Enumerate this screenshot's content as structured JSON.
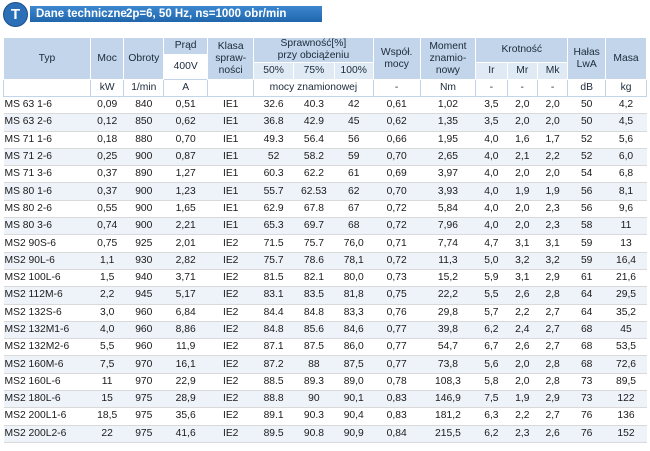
{
  "header": {
    "badge": "T",
    "title": "Dane techniczne",
    "subtitle": "2p=6, 50 Hz, ns=1000 obr/min"
  },
  "table": {
    "headers": {
      "typ": "Typ",
      "moc": "Moc",
      "obroty": "Obroty",
      "prad": "Prąd",
      "prad_sub": "400V",
      "klasa_l1": "Klasa",
      "klasa_l2": "spraw-",
      "klasa_l3": "ności",
      "sprawnosc_l1": "Sprawność[%]",
      "sprawnosc_l2": "przy obciążeniu",
      "spr_50": "50%",
      "spr_75": "75%",
      "spr_100": "100%",
      "wspol_l1": "Współ.",
      "wspol_l2": "mocy",
      "moment_l1": "Moment",
      "moment_l2": "znamio-",
      "moment_l3": "nowy",
      "krotnosc": "Krotność",
      "ir": "Ir",
      "mr": "Mr",
      "mk": "Mk",
      "halas_l1": "Hałas",
      "halas_l2": "LwA",
      "masa": "Masa"
    },
    "units": {
      "moc": "kW",
      "obroty": "1/min",
      "prad": "A",
      "klasa": "",
      "sprawnosc": "mocy znamionowej",
      "wspol": "-",
      "moment": "Nm",
      "ir": "-",
      "mr": "-",
      "mk": "-",
      "halas": "dB",
      "masa": "kg"
    },
    "rows": [
      [
        "MS 63 1-6",
        "0,09",
        "840",
        "0,51",
        "IE1",
        "32.6",
        "40.3",
        "42",
        "0,61",
        "1,02",
        "3,5",
        "2,0",
        "2,0",
        "50",
        "4,2"
      ],
      [
        "MS 63 2-6",
        "0,12",
        "850",
        "0,62",
        "IE1",
        "36.8",
        "42.9",
        "45",
        "0,62",
        "1,35",
        "3,5",
        "2,0",
        "2,0",
        "50",
        "4,5"
      ],
      [
        "MS 71 1-6",
        "0,18",
        "880",
        "0,70",
        "IE1",
        "49.3",
        "56.4",
        "56",
        "0,66",
        "1,95",
        "4,0",
        "1,6",
        "1,7",
        "52",
        "5,6"
      ],
      [
        "MS 71 2-6",
        "0,25",
        "900",
        "0,87",
        "IE1",
        "52",
        "58.2",
        "59",
        "0,70",
        "2,65",
        "4,0",
        "2,1",
        "2,2",
        "52",
        "6,0"
      ],
      [
        "MS 71 3-6",
        "0,37",
        "890",
        "1,27",
        "IE1",
        "60.3",
        "62.2",
        "61",
        "0,69",
        "3,97",
        "4,0",
        "2,0",
        "2,0",
        "54",
        "6,8"
      ],
      [
        "MS 80 1-6",
        "0,37",
        "900",
        "1,23",
        "IE1",
        "55.7",
        "62.53",
        "62",
        "0,70",
        "3,93",
        "4,0",
        "1,9",
        "1,9",
        "56",
        "8,1"
      ],
      [
        "MS 80 2-6",
        "0,55",
        "900",
        "1,65",
        "IE1",
        "62.9",
        "67.8",
        "67",
        "0,72",
        "5,84",
        "4,0",
        "2,0",
        "2,3",
        "56",
        "9,6"
      ],
      [
        "MS 80 3-6",
        "0,74",
        "900",
        "2,21",
        "IE1",
        "65.3",
        "69.7",
        "68",
        "0,72",
        "7,96",
        "4,0",
        "2,0",
        "2,3",
        "58",
        "11"
      ],
      [
        "MS2 90S-6",
        "0,75",
        "925",
        "2,01",
        "IE2",
        "71.5",
        "75.7",
        "76,0",
        "0,71",
        "7,74",
        "4,7",
        "3,1",
        "3,1",
        "59",
        "13"
      ],
      [
        "MS2 90L-6",
        "1,1",
        "930",
        "2,82",
        "IE2",
        "75.7",
        "78.6",
        "78,1",
        "0,72",
        "11,3",
        "5,0",
        "3,2",
        "3,2",
        "59",
        "16,4"
      ],
      [
        "MS2 100L-6",
        "1,5",
        "940",
        "3,71",
        "IE2",
        "81.5",
        "82.1",
        "80,0",
        "0,73",
        "15,2",
        "5,9",
        "3,1",
        "2,9",
        "61",
        "21,6"
      ],
      [
        "MS2 112M-6",
        "2,2",
        "945",
        "5,17",
        "IE2",
        "83.1",
        "83.5",
        "81,8",
        "0,75",
        "22,2",
        "5,5",
        "2,6",
        "2,8",
        "64",
        "29,5"
      ],
      [
        "MS2 132S-6",
        "3,0",
        "960",
        "6,84",
        "IE2",
        "84.4",
        "84.8",
        "83,3",
        "0,76",
        "29,8",
        "5,7",
        "2,2",
        "2,7",
        "64",
        "35,2"
      ],
      [
        "MS2 132M1-6",
        "4,0",
        "960",
        "8,86",
        "IE2",
        "84.8",
        "85.6",
        "84,6",
        "0,77",
        "39,8",
        "6,2",
        "2,4",
        "2,7",
        "68",
        "45"
      ],
      [
        "MS2 132M2-6",
        "5,5",
        "960",
        "11,9",
        "IE2",
        "87.1",
        "87.5",
        "86,0",
        "0,77",
        "54,7",
        "6,7",
        "2,6",
        "2,7",
        "68",
        "53,5"
      ],
      [
        "MS2 160M-6",
        "7,5",
        "970",
        "16,1",
        "IE2",
        "87.2",
        "88",
        "87,5",
        "0,77",
        "73,8",
        "5,6",
        "2,0",
        "2,8",
        "68",
        "72,6"
      ],
      [
        "MS2 160L-6",
        "11",
        "970",
        "22,9",
        "IE2",
        "88.5",
        "89.3",
        "89,0",
        "0,78",
        "108,3",
        "5,8",
        "2,0",
        "2,8",
        "73",
        "89,5"
      ],
      [
        "MS2 180L-6",
        "15",
        "975",
        "28,9",
        "IE2",
        "88.8",
        "90",
        "90,1",
        "0,83",
        "146,9",
        "7,5",
        "1,9",
        "2,9",
        "73",
        "122"
      ],
      [
        "MS2 200L1-6",
        "18,5",
        "975",
        "35,6",
        "IE2",
        "89.1",
        "90.3",
        "90,4",
        "0,83",
        "181,2",
        "6,3",
        "2,2",
        "2,7",
        "76",
        "136"
      ],
      [
        "MS2 200L2-6",
        "22",
        "975",
        "41,6",
        "IE2",
        "89.5",
        "90.8",
        "90,9",
        "0,84",
        "215,5",
        "6,2",
        "2,3",
        "2,6",
        "76",
        "152"
      ]
    ]
  }
}
